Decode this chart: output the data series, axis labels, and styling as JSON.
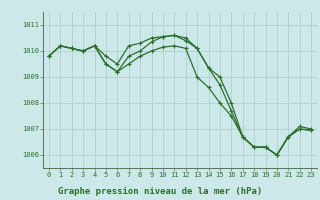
{
  "background_color": "#cce8e8",
  "grid_color": "#aacccc",
  "line_color": "#2d6e2d",
  "marker_color": "#2d6e2d",
  "xlabel": "Graphe pression niveau de la mer (hPa)",
  "xlim": [
    -0.5,
    23.5
  ],
  "ylim": [
    1005.5,
    1011.5
  ],
  "yticks": [
    1006,
    1007,
    1008,
    1009,
    1010,
    1011
  ],
  "xticks": [
    0,
    1,
    2,
    3,
    4,
    5,
    6,
    7,
    8,
    9,
    10,
    11,
    12,
    13,
    14,
    15,
    16,
    17,
    18,
    19,
    20,
    21,
    22,
    23
  ],
  "line1": [
    1009.8,
    1010.2,
    1010.1,
    1010.0,
    1010.2,
    1009.8,
    1009.5,
    1010.2,
    1010.3,
    1010.5,
    1010.55,
    1010.6,
    1010.5,
    1010.1,
    1009.35,
    1009.0,
    1008.0,
    1006.7,
    1006.3,
    1006.3,
    1006.0,
    1006.7,
    1007.1,
    1007.0
  ],
  "line2": [
    1009.8,
    1010.2,
    1010.1,
    1010.0,
    1010.2,
    1009.5,
    1009.2,
    1009.8,
    1010.0,
    1010.35,
    1010.55,
    1010.6,
    1010.4,
    1010.1,
    1009.35,
    1008.7,
    1007.7,
    1006.7,
    1006.3,
    1006.3,
    1006.0,
    1006.7,
    1007.0,
    1006.95
  ],
  "line3": [
    1009.8,
    1010.2,
    1010.1,
    1010.0,
    1010.2,
    1009.5,
    1009.2,
    1009.5,
    1009.8,
    1010.0,
    1010.15,
    1010.2,
    1010.1,
    1009.0,
    1008.6,
    1008.0,
    1007.5,
    1006.7,
    1006.3,
    1006.3,
    1006.0,
    1006.7,
    1007.0,
    1006.95
  ],
  "marker": "+",
  "markersize": 3.5,
  "linewidth": 0.9,
  "tick_labelsize": 5.0,
  "xlabel_fontsize": 6.5,
  "xlabel_fontweight": "bold"
}
